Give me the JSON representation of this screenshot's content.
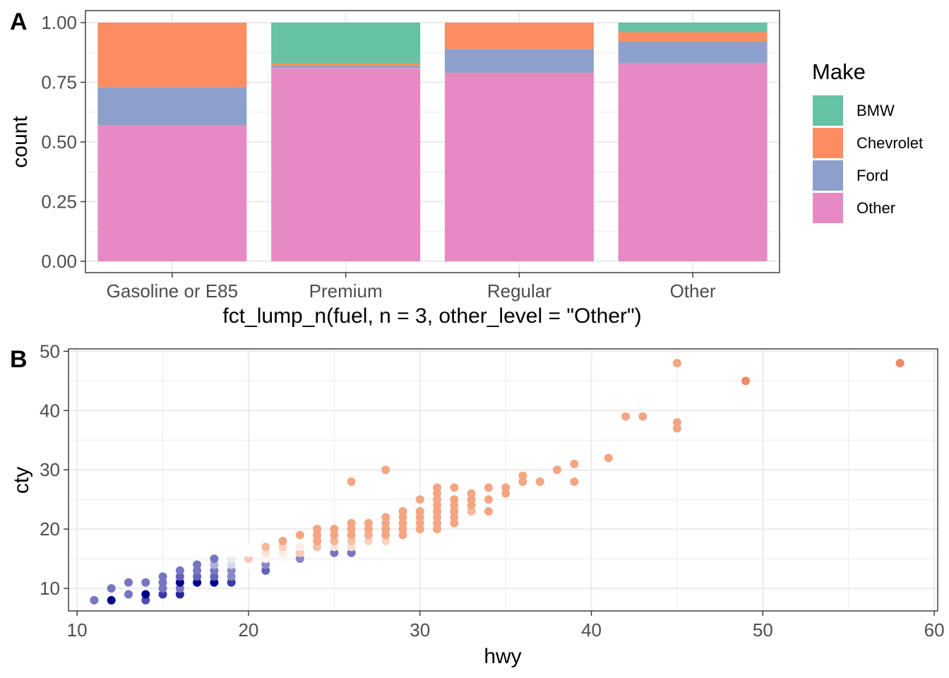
{
  "panel_labels": {
    "a": "A",
    "b": "B"
  },
  "chart_data": [
    {
      "type": "bar",
      "stacked": true,
      "position": "fill",
      "panel": "A",
      "categories": [
        "Gasoline or E85",
        "Premium",
        "Regular",
        "Other"
      ],
      "series": [
        {
          "name": "BMW",
          "color": "#66c2a5",
          "values": [
            0.0,
            0.17,
            0.0,
            0.04
          ]
        },
        {
          "name": "Chevrolet",
          "color": "#fc8d62",
          "values": [
            0.27,
            0.01,
            0.11,
            0.04
          ]
        },
        {
          "name": "Ford",
          "color": "#8da0cb",
          "values": [
            0.16,
            0.01,
            0.1,
            0.09
          ]
        },
        {
          "name": "Other",
          "color": "#e78ac3",
          "values": [
            0.57,
            0.81,
            0.79,
            0.83
          ]
        }
      ],
      "yticks": [
        "0.00",
        "0.25",
        "0.50",
        "0.75",
        "1.00"
      ],
      "xlabel": "fct_lump_n(fuel, n = 3, other_level = \"Other\")",
      "ylabel": "count",
      "ylim": [
        0,
        1
      ],
      "legend": {
        "title": "Make",
        "placement": "right",
        "entries": [
          "BMW",
          "Chevrolet",
          "Ford",
          "Other"
        ]
      }
    },
    {
      "type": "scatter",
      "panel": "B",
      "xlabel": "hwy",
      "ylabel": "cty",
      "xlim": [
        9.5,
        60.2
      ],
      "ylim": [
        6.2,
        50.4
      ],
      "xticks": [
        "10",
        "20",
        "30",
        "40",
        "50",
        "60"
      ],
      "yticks": [
        "10",
        "20",
        "30",
        "40",
        "50"
      ],
      "color_scale": {
        "low": "#00008b",
        "mid": "#ffffff",
        "high": "#f4a582",
        "midpoint": 1.3
      },
      "points": [
        [
          11,
          8,
          0.6
        ],
        [
          12,
          8,
          0.0
        ],
        [
          12,
          10,
          0.6
        ],
        [
          13,
          9,
          0.6
        ],
        [
          13,
          11,
          0.6
        ],
        [
          14,
          8,
          0.4
        ],
        [
          14,
          9,
          0.0
        ],
        [
          14,
          11,
          0.6
        ],
        [
          15,
          9,
          0.3
        ],
        [
          15,
          10,
          0.6
        ],
        [
          15,
          11,
          0.6
        ],
        [
          15,
          12,
          0.6
        ],
        [
          16,
          9,
          0.2
        ],
        [
          16,
          10,
          0.6
        ],
        [
          16,
          11,
          0.0
        ],
        [
          16,
          12,
          0.5
        ],
        [
          16,
          13,
          0.6
        ],
        [
          17,
          11,
          0.0
        ],
        [
          17,
          12,
          0.5
        ],
        [
          17,
          13,
          0.6
        ],
        [
          17,
          14,
          0.6
        ],
        [
          18,
          11,
          0.0
        ],
        [
          18,
          12,
          0.5
        ],
        [
          18,
          13,
          0.6
        ],
        [
          18,
          14,
          0.9
        ],
        [
          18,
          15,
          0.6
        ],
        [
          19,
          11,
          0.3
        ],
        [
          19,
          12,
          0.7
        ],
        [
          19,
          13,
          0.7
        ],
        [
          19,
          14,
          1.1
        ],
        [
          19,
          15,
          1.2
        ],
        [
          19,
          16,
          1.3
        ],
        [
          20,
          14,
          1.3
        ],
        [
          20,
          15,
          1.9
        ],
        [
          20,
          16,
          1.3
        ],
        [
          20,
          17,
          1.3
        ],
        [
          21,
          13,
          0.5
        ],
        [
          21,
          14,
          0.7
        ],
        [
          21,
          15,
          1.4
        ],
        [
          21,
          16,
          1.6
        ],
        [
          21,
          17,
          2.1
        ],
        [
          22,
          15,
          1.4
        ],
        [
          22,
          16,
          1.5
        ],
        [
          22,
          17,
          1.8
        ],
        [
          22,
          18,
          2.3
        ],
        [
          23,
          15,
          0.7
        ],
        [
          23,
          16,
          1.9
        ],
        [
          23,
          17,
          1.5
        ],
        [
          23,
          19,
          2.3
        ],
        [
          24,
          16,
          1.3
        ],
        [
          24,
          17,
          2.0
        ],
        [
          24,
          18,
          2.3
        ],
        [
          24,
          19,
          2.3
        ],
        [
          24,
          20,
          2.3
        ],
        [
          25,
          16,
          0.6
        ],
        [
          25,
          17,
          1.6
        ],
        [
          25,
          18,
          2.1
        ],
        [
          25,
          19,
          2.3
        ],
        [
          25,
          20,
          2.3
        ],
        [
          26,
          16,
          0.6
        ],
        [
          26,
          17,
          1.7
        ],
        [
          26,
          18,
          2.0
        ],
        [
          26,
          19,
          2.3
        ],
        [
          26,
          20,
          2.3
        ],
        [
          26,
          21,
          2.3
        ],
        [
          26,
          28,
          2.3
        ],
        [
          27,
          18,
          1.8
        ],
        [
          27,
          19,
          2.2
        ],
        [
          27,
          20,
          2.3
        ],
        [
          27,
          21,
          2.3
        ],
        [
          28,
          18,
          1.8
        ],
        [
          28,
          19,
          2.3
        ],
        [
          28,
          20,
          2.3
        ],
        [
          28,
          21,
          2.3
        ],
        [
          28,
          22,
          2.3
        ],
        [
          28,
          30,
          2.3
        ],
        [
          29,
          19,
          2.3
        ],
        [
          29,
          20,
          2.3
        ],
        [
          29,
          21,
          2.3
        ],
        [
          29,
          22,
          2.3
        ],
        [
          29,
          23,
          2.3
        ],
        [
          30,
          20,
          2.3
        ],
        [
          30,
          21,
          2.3
        ],
        [
          30,
          22,
          2.3
        ],
        [
          30,
          23,
          2.3
        ],
        [
          30,
          25,
          2.3
        ],
        [
          31,
          20,
          2.3
        ],
        [
          31,
          21,
          2.3
        ],
        [
          31,
          22,
          2.3
        ],
        [
          31,
          23,
          2.3
        ],
        [
          31,
          24,
          2.3
        ],
        [
          31,
          25,
          2.3
        ],
        [
          31,
          26,
          2.3
        ],
        [
          31,
          27,
          2.3
        ],
        [
          32,
          21,
          2.3
        ],
        [
          32,
          22,
          2.3
        ],
        [
          32,
          23,
          2.3
        ],
        [
          32,
          24,
          2.3
        ],
        [
          32,
          25,
          2.3
        ],
        [
          32,
          27,
          2.3
        ],
        [
          33,
          23,
          2.1
        ],
        [
          33,
          24,
          2.3
        ],
        [
          33,
          25,
          2.3
        ],
        [
          33,
          26,
          2.3
        ],
        [
          34,
          23,
          2.3
        ],
        [
          34,
          25,
          2.3
        ],
        [
          34,
          27,
          2.3
        ],
        [
          35,
          26,
          2.3
        ],
        [
          35,
          27,
          2.3
        ],
        [
          36,
          28,
          2.3
        ],
        [
          36,
          29,
          2.3
        ],
        [
          37,
          28,
          2.3
        ],
        [
          38,
          30,
          2.3
        ],
        [
          39,
          28,
          2.3
        ],
        [
          39,
          31,
          2.3
        ],
        [
          41,
          32,
          2.3
        ],
        [
          42,
          39,
          2.3
        ],
        [
          43,
          39,
          2.3
        ],
        [
          45,
          37,
          2.3
        ],
        [
          45,
          38,
          2.3
        ],
        [
          45,
          48,
          2.3
        ],
        [
          49,
          45,
          3.0
        ],
        [
          58,
          48,
          3.0
        ]
      ]
    }
  ]
}
